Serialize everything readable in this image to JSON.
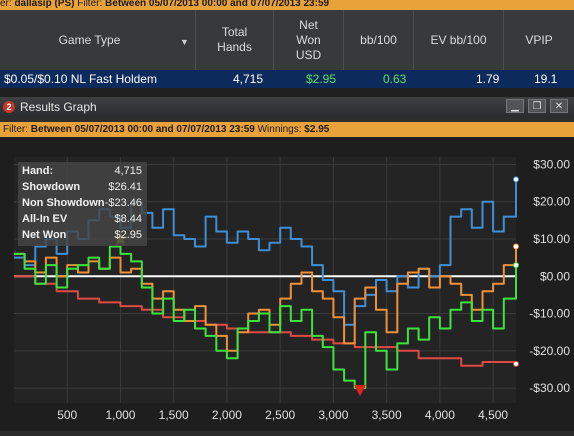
{
  "top_filter": {
    "prefix": "er:",
    "player": "dallasip (PS)",
    "label": "Filter:",
    "text": "Between 05/07/2013 00:00 and 07/07/2013 23:59"
  },
  "table": {
    "headers": {
      "game_type": "Game Type",
      "total_hands": "Total Hands",
      "net_won": "Net Won USD",
      "bb100": "bb/100",
      "ev_bb100": "EV bb/100",
      "vpip": "VPIP"
    },
    "row": {
      "game": "$0.05/$0.10 NL Fast Holdem",
      "hands": "4,715",
      "net_won": "$2.95",
      "bb100": "0.63",
      "ev_bb100": "1.79",
      "vpip": "19.1"
    }
  },
  "window": {
    "badge": "2",
    "title": "Results Graph",
    "minimize_label": "▁",
    "restore_label": "❐",
    "close_label": "✕"
  },
  "graph_filter": {
    "label": "Filter:",
    "text": "Between 05/07/2013 00:00 and 07/07/2013 23:59",
    "winnings_label": "Winnings:",
    "winnings_value": "$2.95"
  },
  "summary": [
    {
      "label": "Hand:",
      "value": "4,715"
    },
    {
      "label": "Showdown",
      "value": "$26.41"
    },
    {
      "label": "Non Showdown",
      "value": "-$23.46"
    },
    {
      "label": "All-In EV",
      "value": "$8.44"
    },
    {
      "label": "Net Won",
      "value": "$2.95"
    }
  ],
  "colors": {
    "showdown": "#3f8fd6",
    "non_showdown": "#e04a44",
    "all_in_ev": "#f0913a",
    "net_won": "#3ee43e",
    "zero_line": "#ffffff",
    "filter_bar": "#e9a23a",
    "selected_row": "#0d2a5c"
  },
  "chart_data": {
    "type": "line",
    "x_ticks": [
      500,
      1000,
      1500,
      2000,
      2500,
      3000,
      3500,
      4000,
      4500
    ],
    "x_tick_labels": [
      "500",
      "1,000",
      "1,500",
      "2,000",
      "2,500",
      "3,000",
      "3,500",
      "4,000",
      "4,500"
    ],
    "y_ticks": [
      30,
      20,
      10,
      0,
      -10,
      -20,
      -30
    ],
    "y_tick_labels": [
      "$30.00",
      "$20.00",
      "$10.00",
      "$0.00",
      "-$10.00",
      "-$20.00",
      "-$30.00"
    ],
    "xlim": [
      0,
      4715
    ],
    "ylim": [
      -34,
      32
    ],
    "grid": true,
    "series": [
      {
        "key": "showdown",
        "x": [
          0,
          100,
          200,
          300,
          400,
          500,
          600,
          700,
          800,
          900,
          1000,
          1100,
          1200,
          1300,
          1400,
          1500,
          1600,
          1700,
          1800,
          1900,
          2000,
          2100,
          2200,
          2300,
          2400,
          2500,
          2600,
          2700,
          2800,
          2900,
          3000,
          3100,
          3200,
          3300,
          3400,
          3500,
          3600,
          3700,
          3800,
          3900,
          4000,
          4100,
          4200,
          4300,
          4400,
          4500,
          4600,
          4715
        ],
        "y": [
          5,
          3,
          8,
          10,
          6,
          12,
          10,
          15,
          18,
          16,
          13,
          20,
          17,
          13,
          18,
          11,
          10,
          8,
          16,
          12,
          9,
          12,
          10,
          7,
          9,
          13,
          10,
          8,
          3,
          -1,
          -4,
          -13,
          -8,
          -5,
          -1,
          -4,
          0,
          -3,
          2,
          0,
          3,
          16,
          18,
          13,
          20,
          12,
          16,
          26
        ]
      },
      {
        "key": "non_showdown",
        "x": [
          0,
          200,
          400,
          600,
          800,
          1000,
          1200,
          1400,
          1600,
          1800,
          2000,
          2200,
          2400,
          2600,
          2800,
          3000,
          3200,
          3400,
          3600,
          3800,
          4000,
          4200,
          4400,
          4600,
          4715
        ],
        "y": [
          0,
          -2,
          -4,
          -6,
          -7,
          -8,
          -9,
          -11,
          -12,
          -13,
          -14,
          -15,
          -15,
          -16,
          -17,
          -18,
          -19,
          -19,
          -20,
          -22,
          -22,
          -24,
          -23,
          -23,
          -23.5
        ]
      },
      {
        "key": "all_in_ev",
        "x": [
          0,
          100,
          200,
          300,
          400,
          500,
          600,
          700,
          800,
          900,
          1000,
          1100,
          1200,
          1300,
          1400,
          1500,
          1600,
          1700,
          1800,
          1900,
          2000,
          2100,
          2200,
          2300,
          2400,
          2500,
          2600,
          2700,
          2800,
          2900,
          3000,
          3100,
          3200,
          3300,
          3400,
          3500,
          3600,
          3700,
          3800,
          3900,
          4000,
          4100,
          4200,
          4300,
          4400,
          4500,
          4600,
          4715
        ],
        "y": [
          6,
          4,
          1,
          5,
          0,
          3,
          1,
          4,
          2,
          5,
          1,
          2,
          -2,
          -6,
          -4,
          -9,
          -12,
          -8,
          -13,
          -16,
          -20,
          -15,
          -10,
          -9,
          -13,
          -6,
          -2,
          1,
          -4,
          -6,
          -11,
          -18,
          -6,
          -3,
          -9,
          -15,
          -2,
          1,
          2,
          -3,
          0,
          -2,
          -5,
          -9,
          -4,
          -2,
          3,
          8
        ]
      },
      {
        "key": "net_won",
        "x": [
          0,
          100,
          200,
          300,
          400,
          500,
          600,
          700,
          800,
          900,
          1000,
          1100,
          1200,
          1300,
          1400,
          1500,
          1600,
          1700,
          1800,
          1900,
          2000,
          2100,
          2200,
          2300,
          2400,
          2500,
          2600,
          2700,
          2800,
          2900,
          3000,
          3100,
          3200,
          3300,
          3400,
          3500,
          3600,
          3700,
          3800,
          3900,
          4000,
          4100,
          4200,
          4300,
          4400,
          4500,
          4600,
          4715
        ],
        "y": [
          6,
          2,
          -2,
          3,
          -3,
          2,
          3,
          5,
          2,
          8,
          6,
          4,
          -3,
          -10,
          -6,
          -12,
          -9,
          -14,
          -16,
          -20,
          -22,
          -14,
          -12,
          -10,
          -15,
          -8,
          -12,
          -9,
          -16,
          -19,
          -25,
          -28,
          -30,
          -15,
          -20,
          -25,
          -18,
          -14,
          -17,
          -11,
          -14,
          -9,
          -7,
          -12,
          -9,
          -14,
          -6,
          3
        ]
      }
    ],
    "markers": [
      {
        "kind": "star",
        "x": 1000,
        "y": 10
      },
      {
        "kind": "triangle",
        "x": 3250,
        "y": -30
      }
    ]
  }
}
